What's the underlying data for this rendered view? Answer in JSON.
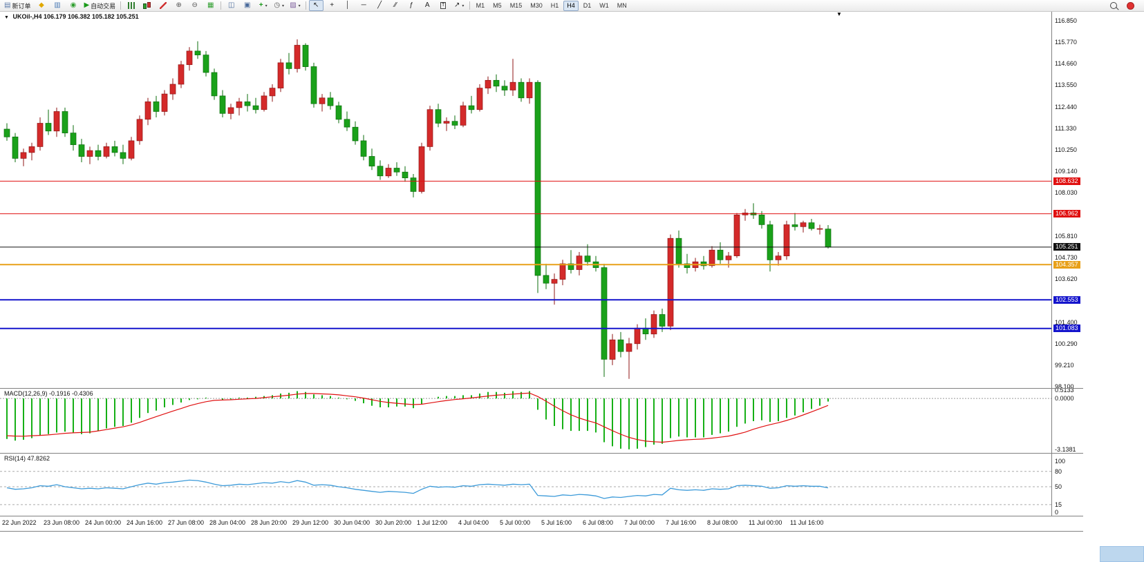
{
  "theme": {
    "up_color": "#d42a2a",
    "up_border": "#8f1414",
    "down_color": "#1aa11a",
    "down_border": "#0b6e0b",
    "macd_bar": "#16b016",
    "macd_signal": "#e01010",
    "rsi_line": "#3b9ad9",
    "level_red": "#e01010",
    "level_orange": "#e8a018",
    "level_blue": "#1414cc",
    "level_black": "#101010"
  },
  "toolbar": {
    "left_buttons": [
      {
        "name": "new-order-button",
        "icon": "new-order-icon",
        "glyph": "▤",
        "color": "#5b79a8",
        "label": "新订单"
      },
      {
        "name": "metaeditor-button",
        "icon": "diamond-icon",
        "glyph": "◆",
        "color": "#e0a800"
      },
      {
        "name": "charts-window-button",
        "icon": "chart-window-icon",
        "glyph": "▥",
        "color": "#4a7ab5"
      },
      {
        "name": "experts-button",
        "icon": "globe-icon",
        "glyph": "◉",
        "color": "#2f9e2f"
      },
      {
        "name": "autotrading-button",
        "icon": "play-icon",
        "glyph": "▶",
        "color": "#1a9a1a",
        "label": "自动交易"
      }
    ],
    "chart_type_buttons": [
      {
        "name": "bars-chart-button",
        "icon": "ohlc-bars-icon",
        "css": "i-bars"
      },
      {
        "name": "candles-chart-button",
        "icon": "candlestick-icon",
        "css": "i-candles"
      },
      {
        "name": "line-chart-button",
        "icon": "line-chart-icon",
        "css": "i-line"
      },
      {
        "name": "zoom-in-button",
        "icon": "zoom-in-icon",
        "glyph": "⊕",
        "color": "#555555"
      },
      {
        "name": "zoom-out-button",
        "icon": "zoom-out-icon",
        "glyph": "⊖",
        "color": "#555555"
      },
      {
        "name": "indicators-button",
        "icon": "grid-icon",
        "glyph": "▦",
        "color": "#2f9e2f"
      }
    ],
    "window_buttons": [
      {
        "name": "tile-windows-button",
        "icon": "tile-windows-icon",
        "glyph": "◫",
        "color": "#4a6a9a"
      },
      {
        "name": "cascade-windows-button",
        "icon": "cascade-windows-icon",
        "glyph": "▣",
        "color": "#4a6a9a"
      },
      {
        "name": "add-indicator-button",
        "icon": "plus-icon",
        "glyph": "+",
        "color": "#1a9a1a",
        "bold": true,
        "caret": true
      },
      {
        "name": "periods-button",
        "icon": "clock-icon",
        "glyph": "◷",
        "color": "#555555",
        "caret": true
      },
      {
        "name": "templates-button",
        "icon": "template-icon",
        "glyph": "▨",
        "color": "#7a5a9a",
        "caret": true
      }
    ],
    "tool_buttons": [
      {
        "name": "cursor-tool",
        "icon": "cursor-icon",
        "glyph": "↖",
        "color": "#222222",
        "pressed": true
      },
      {
        "name": "crosshair-tool",
        "icon": "crosshair-icon",
        "glyph": "+",
        "color": "#222222"
      },
      {
        "name": "vertical-line-tool",
        "icon": "vertical-line-icon",
        "glyph": "│",
        "color": "#222222"
      },
      {
        "name": "horizontal-line-tool",
        "icon": "horizontal-line-icon",
        "glyph": "─",
        "color": "#222222"
      },
      {
        "name": "trendline-tool",
        "icon": "trendline-icon",
        "glyph": "╱",
        "color": "#222222"
      },
      {
        "name": "channel-tool",
        "icon": "channel-icon",
        "glyph": "∕∕",
        "color": "#222222"
      },
      {
        "name": "fibonacci-tool",
        "icon": "fibonacci-icon",
        "glyph": "ƒ",
        "color": "#222222"
      },
      {
        "name": "text-tool",
        "icon": "text-icon",
        "glyph": "A",
        "color": "#222222"
      },
      {
        "name": "label-tool",
        "icon": "text-label-icon",
        "glyph": "T",
        "color": "#222222",
        "boxed": true
      },
      {
        "name": "arrows-tool",
        "icon": "arrow-icon",
        "glyph": "↗",
        "color": "#222222",
        "caret": true
      }
    ],
    "timeframes": [
      "M1",
      "M5",
      "M15",
      "M30",
      "H1",
      "H4",
      "D1",
      "W1",
      "MN"
    ],
    "active_timeframe": "H4",
    "right_buttons": [
      {
        "name": "search-button",
        "icon": "magnifier-icon",
        "css": "i-mag"
      },
      {
        "name": "connection-status",
        "icon": "red-circle-icon",
        "css": "i-reddot"
      }
    ]
  },
  "chart": {
    "collapse_icon": "▼",
    "scroll_marker": "▼",
    "symbol_label": "UKOil-,H4",
    "ohlc_label": "106.179 106.382 105.182 105.251",
    "price_axis": [
      "116.850",
      "115.770",
      "114.660",
      "113.550",
      "112.440",
      "111.330",
      "110.250",
      "109.140",
      "108.030",
      "106.920",
      "105.810",
      "104.730",
      "103.620",
      "102.510",
      "101.400",
      "100.290",
      "99.210",
      "98.100"
    ],
    "levels": [
      {
        "label": "108.632",
        "price": 108.632,
        "color": "#e01010",
        "width": 1
      },
      {
        "label": "106.962",
        "price": 106.962,
        "color": "#e01010",
        "width": 1
      },
      {
        "label": "105.251",
        "price": 105.251,
        "color": "#101010",
        "width": 1
      },
      {
        "label": "104.357",
        "price": 104.357,
        "color": "#e8a018",
        "width": 2
      },
      {
        "label": "102.553",
        "price": 102.553,
        "color": "#1414cc",
        "width": 2
      },
      {
        "label": "101.083",
        "price": 101.083,
        "color": "#1414cc",
        "width": 2
      }
    ]
  },
  "macd": {
    "label": "MACD(12,26,9) -0.1916 -0.4306",
    "ylim": [
      -3.36,
      0.6
    ],
    "scale": [
      {
        "value": 0.5133,
        "label": "0.5133"
      },
      {
        "value": 0,
        "label": "0.0000"
      },
      {
        "value": -3.1381,
        "label": "-3.1381"
      }
    ]
  },
  "rsi": {
    "label": "RSI(14) 47.8262",
    "ylim": [
      -6.8,
      114.9
    ],
    "levels": [
      {
        "value": 100,
        "label": "100",
        "line": false
      },
      {
        "value": 80,
        "label": "80",
        "line": true
      },
      {
        "value": 50,
        "label": "50",
        "line": true
      },
      {
        "value": 15,
        "label": "15",
        "line": true
      },
      {
        "value": 0,
        "label": "0",
        "line": false
      }
    ]
  },
  "chart_data": {
    "type": "candlestick",
    "symbol": "UKOil-",
    "timeframe": "H4",
    "ylim": [
      98.03,
      117.35
    ],
    "label_every": 5,
    "time_labels": [
      "22 Jun 2022",
      "23 Jun 08:00",
      "24 Jun 00:00",
      "24 Jun 16:00",
      "27 Jun 08:00",
      "28 Jun 04:00",
      "28 Jun 20:00",
      "29 Jun 12:00",
      "30 Jun 04:00",
      "30 Jun 20:00",
      "1 Jul 12:00",
      "4 Jul 04:00",
      "5 Jul 00:00",
      "5 Jul 16:00",
      "6 Jul 08:00",
      "7 Jul 00:00",
      "7 Jul 16:00",
      "8 Jul 08:00",
      "11 Jul 00:00",
      "11 Jul 16:00"
    ],
    "ohlc": [
      [
        111.3,
        111.6,
        110.7,
        110.9
      ],
      [
        110.9,
        111.1,
        109.6,
        109.8
      ],
      [
        109.8,
        110.3,
        109.4,
        110.1
      ],
      [
        110.1,
        110.6,
        109.7,
        110.4
      ],
      [
        110.4,
        111.9,
        110.2,
        111.6
      ],
      [
        111.6,
        112.3,
        111.0,
        111.2
      ],
      [
        111.2,
        112.4,
        110.9,
        112.2
      ],
      [
        112.2,
        112.4,
        110.9,
        111.1
      ],
      [
        111.1,
        111.5,
        110.2,
        110.5
      ],
      [
        110.5,
        110.8,
        109.6,
        109.9
      ],
      [
        109.9,
        110.4,
        109.5,
        110.2
      ],
      [
        110.2,
        110.5,
        109.7,
        109.9
      ],
      [
        109.9,
        110.6,
        109.8,
        110.4
      ],
      [
        110.4,
        110.7,
        109.9,
        110.1
      ],
      [
        110.1,
        110.5,
        109.5,
        109.8
      ],
      [
        109.8,
        110.9,
        109.7,
        110.7
      ],
      [
        110.7,
        112.0,
        110.5,
        111.8
      ],
      [
        111.8,
        112.9,
        111.5,
        112.7
      ],
      [
        112.7,
        113.0,
        111.9,
        112.2
      ],
      [
        112.2,
        113.3,
        112.0,
        113.1
      ],
      [
        113.1,
        113.9,
        112.8,
        113.6
      ],
      [
        113.6,
        114.8,
        113.4,
        114.6
      ],
      [
        114.6,
        115.5,
        114.3,
        115.3
      ],
      [
        115.3,
        115.8,
        114.9,
        115.1
      ],
      [
        115.1,
        115.3,
        114.0,
        114.2
      ],
      [
        114.2,
        114.4,
        112.8,
        113.0
      ],
      [
        113.0,
        113.3,
        111.9,
        112.1
      ],
      [
        112.1,
        112.6,
        111.8,
        112.4
      ],
      [
        112.4,
        112.9,
        112.0,
        112.7
      ],
      [
        112.7,
        113.1,
        112.2,
        112.5
      ],
      [
        112.5,
        112.9,
        112.1,
        112.3
      ],
      [
        112.3,
        113.2,
        112.2,
        113.0
      ],
      [
        113.0,
        113.6,
        112.7,
        113.4
      ],
      [
        113.4,
        114.9,
        113.2,
        114.7
      ],
      [
        114.7,
        115.2,
        114.1,
        114.4
      ],
      [
        114.4,
        115.9,
        114.2,
        115.6
      ],
      [
        115.6,
        115.7,
        114.3,
        114.5
      ],
      [
        114.5,
        114.7,
        112.4,
        112.6
      ],
      [
        112.6,
        113.1,
        112.2,
        112.9
      ],
      [
        112.9,
        113.2,
        112.3,
        112.5
      ],
      [
        112.5,
        112.7,
        111.6,
        111.8
      ],
      [
        111.8,
        112.2,
        111.2,
        111.4
      ],
      [
        111.4,
        111.7,
        110.5,
        110.7
      ],
      [
        110.7,
        111.0,
        109.7,
        109.9
      ],
      [
        109.9,
        110.3,
        109.2,
        109.4
      ],
      [
        109.4,
        109.7,
        108.7,
        108.9
      ],
      [
        108.9,
        109.5,
        108.8,
        109.3
      ],
      [
        109.3,
        109.6,
        108.9,
        109.1
      ],
      [
        109.1,
        109.4,
        108.6,
        108.8
      ],
      [
        108.8,
        109.0,
        107.8,
        108.1
      ],
      [
        108.1,
        110.6,
        108.0,
        110.4
      ],
      [
        110.4,
        112.5,
        110.2,
        112.3
      ],
      [
        112.3,
        112.6,
        111.4,
        111.6
      ],
      [
        111.6,
        111.9,
        111.2,
        111.7
      ],
      [
        111.7,
        112.0,
        111.3,
        111.5
      ],
      [
        111.5,
        112.7,
        111.4,
        112.5
      ],
      [
        112.5,
        113.0,
        112.1,
        112.3
      ],
      [
        112.3,
        113.6,
        112.2,
        113.4
      ],
      [
        113.4,
        114.0,
        113.1,
        113.8
      ],
      [
        113.8,
        114.1,
        113.2,
        113.5
      ],
      [
        113.5,
        113.8,
        113.0,
        113.3
      ],
      [
        113.3,
        114.9,
        113.0,
        113.7
      ],
      [
        113.7,
        113.9,
        112.7,
        112.9
      ],
      [
        112.9,
        113.9,
        112.6,
        113.7
      ],
      [
        113.7,
        113.8,
        102.9,
        103.8
      ],
      [
        103.8,
        104.4,
        103.1,
        103.4
      ],
      [
        103.4,
        103.9,
        102.3,
        103.6
      ],
      [
        103.6,
        104.6,
        103.3,
        104.4
      ],
      [
        104.4,
        105.1,
        103.9,
        104.1
      ],
      [
        104.1,
        105.0,
        103.8,
        104.8
      ],
      [
        104.8,
        105.4,
        104.3,
        104.5
      ],
      [
        104.5,
        104.8,
        104.0,
        104.2
      ],
      [
        104.2,
        104.4,
        98.6,
        99.5
      ],
      [
        99.5,
        100.8,
        99.2,
        100.5
      ],
      [
        100.5,
        100.9,
        99.6,
        99.9
      ],
      [
        99.9,
        100.6,
        98.5,
        100.3
      ],
      [
        100.3,
        101.3,
        100.0,
        101.1
      ],
      [
        101.1,
        101.6,
        100.5,
        100.8
      ],
      [
        100.8,
        102.0,
        100.6,
        101.8
      ],
      [
        101.8,
        102.1,
        100.9,
        101.2
      ],
      [
        101.2,
        105.9,
        101.0,
        105.7
      ],
      [
        105.7,
        106.1,
        104.2,
        104.4
      ],
      [
        104.4,
        104.9,
        103.9,
        104.2
      ],
      [
        104.2,
        104.7,
        104.0,
        104.5
      ],
      [
        104.5,
        104.8,
        104.1,
        104.3
      ],
      [
        104.3,
        105.3,
        104.2,
        105.1
      ],
      [
        105.1,
        105.5,
        104.4,
        104.6
      ],
      [
        104.6,
        105.0,
        104.2,
        104.8
      ],
      [
        104.8,
        107.0,
        104.7,
        106.9
      ],
      [
        106.9,
        107.2,
        106.6,
        107.0
      ],
      [
        107.0,
        107.5,
        106.7,
        106.9
      ],
      [
        106.9,
        107.1,
        106.2,
        106.4
      ],
      [
        106.4,
        106.6,
        104.0,
        104.6
      ],
      [
        104.6,
        105.0,
        104.3,
        104.8
      ],
      [
        104.8,
        106.6,
        104.6,
        106.4
      ],
      [
        106.4,
        107.0,
        106.1,
        106.3
      ],
      [
        106.3,
        106.6,
        106.0,
        106.5
      ],
      [
        106.5,
        106.7,
        106.1,
        106.2
      ],
      [
        106.2,
        106.4,
        105.9,
        106.2
      ],
      [
        106.179,
        106.382,
        105.182,
        105.251
      ]
    ],
    "macd_histogram": [
      -2.5,
      -2.6,
      -2.55,
      -2.45,
      -2.3,
      -2.2,
      -2.1,
      -2.05,
      -2.1,
      -2.2,
      -2.15,
      -2.0,
      -1.85,
      -1.75,
      -1.7,
      -1.5,
      -1.2,
      -0.9,
      -0.75,
      -0.55,
      -0.4,
      -0.25,
      -0.1,
      -0.05,
      0.05,
      0.0,
      -0.1,
      -0.05,
      0.05,
      0.05,
      0.1,
      0.15,
      0.2,
      0.3,
      0.35,
      0.45,
      0.4,
      0.25,
      0.2,
      0.15,
      0.05,
      -0.05,
      -0.15,
      -0.3,
      -0.45,
      -0.55,
      -0.55,
      -0.5,
      -0.5,
      -0.6,
      -0.35,
      0.0,
      0.1,
      0.15,
      0.15,
      0.2,
      0.2,
      0.3,
      0.4,
      0.4,
      0.35,
      0.45,
      0.4,
      0.45,
      -0.7,
      -1.3,
      -1.7,
      -1.9,
      -2.0,
      -2.0,
      -2.0,
      -2.1,
      -2.7,
      -2.95,
      -3.1,
      -3.1381,
      -3.1,
      -3.0,
      -2.85,
      -2.8,
      -2.45,
      -2.35,
      -2.4,
      -2.4,
      -2.4,
      -2.25,
      -2.15,
      -2.05,
      -1.75,
      -1.55,
      -1.4,
      -1.35,
      -1.45,
      -1.4,
      -1.2,
      -1.05,
      -0.85,
      -0.65,
      -0.45,
      -0.1916
    ],
    "macd_signal": [
      -2.3,
      -2.32,
      -2.33,
      -2.3,
      -2.28,
      -2.25,
      -2.2,
      -2.15,
      -2.12,
      -2.1,
      -2.08,
      -2.0,
      -1.92,
      -1.83,
      -1.75,
      -1.63,
      -1.48,
      -1.3,
      -1.12,
      -0.95,
      -0.78,
      -0.62,
      -0.45,
      -0.32,
      -0.2,
      -0.12,
      -0.1,
      -0.08,
      -0.05,
      -0.02,
      0.0,
      0.05,
      0.1,
      0.15,
      0.2,
      0.27,
      0.3,
      0.3,
      0.28,
      0.26,
      0.22,
      0.16,
      0.1,
      0.02,
      -0.08,
      -0.18,
      -0.25,
      -0.3,
      -0.34,
      -0.38,
      -0.36,
      -0.28,
      -0.2,
      -0.13,
      -0.07,
      -0.02,
      0.03,
      0.09,
      0.15,
      0.2,
      0.23,
      0.27,
      0.3,
      0.33,
      0.12,
      -0.17,
      -0.48,
      -0.76,
      -1.01,
      -1.21,
      -1.37,
      -1.51,
      -1.75,
      -1.99,
      -2.21,
      -2.4,
      -2.54,
      -2.63,
      -2.67,
      -2.7,
      -2.65,
      -2.59,
      -2.55,
      -2.52,
      -2.5,
      -2.45,
      -2.39,
      -2.32,
      -2.21,
      -2.08,
      -1.9,
      -1.75,
      -1.62,
      -1.5,
      -1.36,
      -1.2,
      -1.02,
      -0.83,
      -0.63,
      -0.4306
    ],
    "rsi_values": [
      48,
      45,
      46,
      48,
      52,
      51,
      54,
      50,
      48,
      46,
      47,
      46,
      48,
      47,
      46,
      50,
      54,
      57,
      55,
      58,
      59,
      61,
      63,
      62,
      59,
      55,
      52,
      53,
      55,
      54,
      56,
      58,
      57,
      60,
      58,
      62,
      59,
      53,
      54,
      53,
      50,
      48,
      45,
      43,
      41,
      39,
      41,
      40,
      39,
      37,
      45,
      51,
      49,
      50,
      49,
      52,
      51,
      54,
      55,
      54,
      53,
      55,
      54,
      55,
      33,
      32,
      31,
      34,
      33,
      35,
      34,
      32,
      27,
      30,
      29,
      31,
      33,
      32,
      35,
      34,
      47,
      44,
      43,
      44,
      43,
      46,
      45,
      46,
      52,
      53,
      52,
      51,
      47,
      48,
      52,
      51,
      52,
      51,
      51,
      47.8262
    ]
  }
}
